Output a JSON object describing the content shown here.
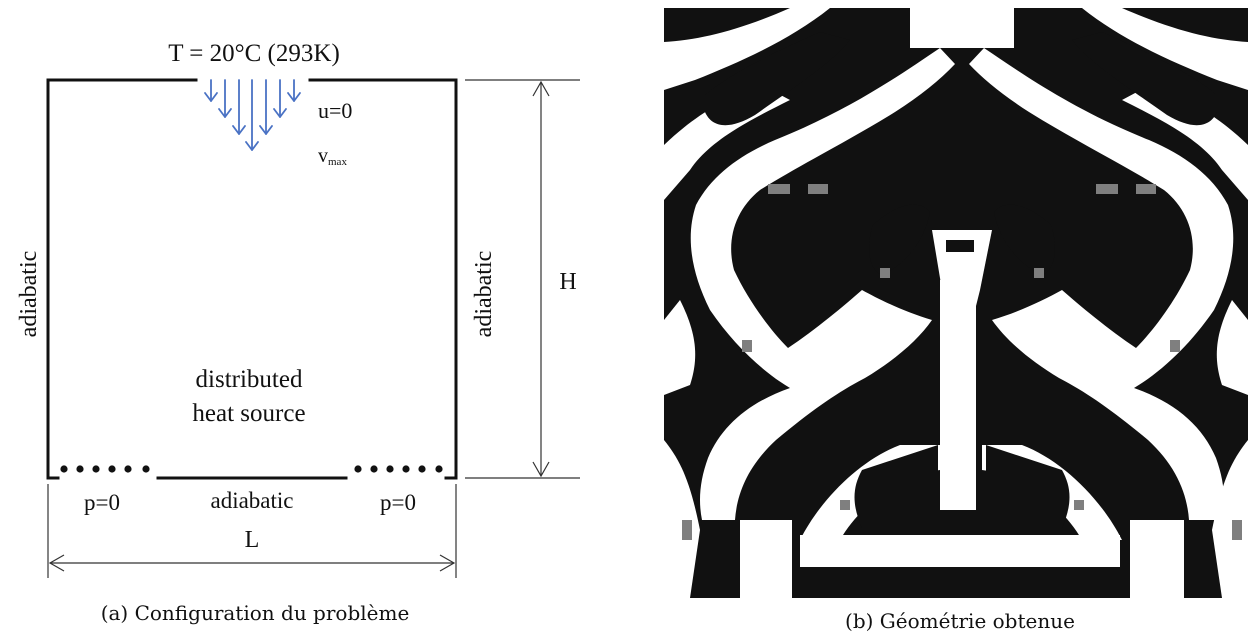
{
  "left_panel": {
    "top_condition": "T = 20°C (293K)",
    "inlet_u": "u=0",
    "inlet_v_letter": "v",
    "inlet_v_sub": "max",
    "left_wall": "adiabatic",
    "right_wall": "adiabatic",
    "height_label": "H",
    "source_line1": "distributed",
    "source_line2": "heat source",
    "outlet_left": "p=0",
    "bottom_wall": "adiabatic",
    "outlet_right": "p=0",
    "width_label": "L",
    "caption": "(a) Configuration du problème",
    "colors": {
      "walls": "#111111",
      "inlet_arrows": "#4a72c4",
      "outlet_dots": "#111111"
    }
  },
  "right_panel": {
    "caption": "(b) Géométrie obtenue",
    "colors": {
      "solid": "#111111",
      "fluid": "#ffffff",
      "intermediate": "#7f7f7f"
    }
  }
}
